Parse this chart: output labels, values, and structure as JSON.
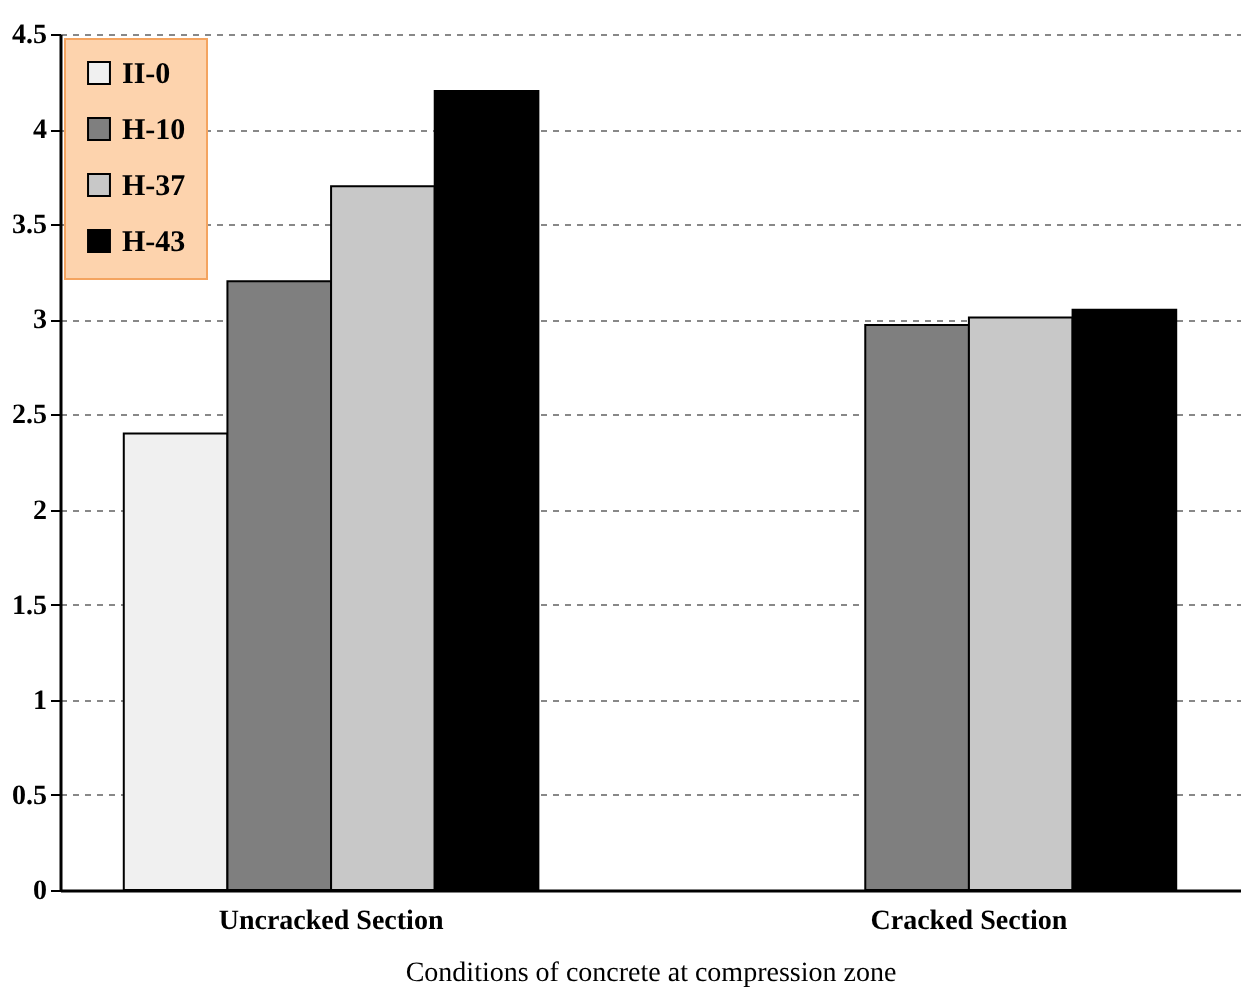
{
  "chart_data": {
    "type": "bar",
    "xlabel": "Conditions of concrete at compression zone",
    "categories": [
      "Uncracked Section",
      "Cracked Section"
    ],
    "series": [
      {
        "name": "II-0",
        "color": "#f0f0f0",
        "values": [
          2.4,
          null
        ]
      },
      {
        "name": "H-10",
        "color": "#7f7f7f",
        "values": [
          3.2,
          2.97
        ]
      },
      {
        "name": "H-37",
        "color": "#c8c8c8",
        "values": [
          3.7,
          3.01
        ]
      },
      {
        "name": "H-43",
        "color": "#000000",
        "values": [
          4.2,
          3.05
        ]
      }
    ],
    "ylim": [
      0,
      4.5
    ],
    "yticks": [
      0,
      0.5,
      1,
      1.5,
      2,
      2.5,
      3,
      3.5,
      4,
      4.5
    ],
    "grid": "y",
    "legend": "top left"
  }
}
